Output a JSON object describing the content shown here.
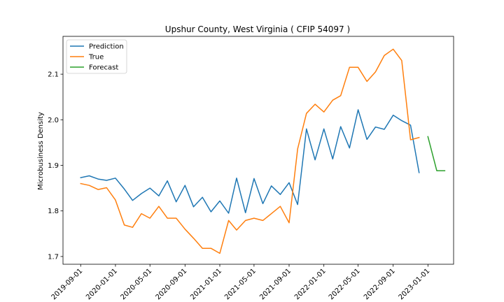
{
  "chart_data": {
    "type": "line",
    "title": "Upshur County, West Virginia ( CFIP 54097 )",
    "xlabel": "",
    "ylabel": "Microbusiness Density",
    "ylim": [
      1.683,
      2.183
    ],
    "yticks": [
      1.7,
      1.8,
      1.9,
      2.0,
      2.1
    ],
    "ytick_labels": [
      "1.7",
      "1.8",
      "1.9",
      "2.0",
      "2.1"
    ],
    "xlim": [
      "2019-07-01",
      "2023-04-01"
    ],
    "xticks": [
      "2019-09-01",
      "2020-01-01",
      "2020-05-01",
      "2020-09-01",
      "2021-01-01",
      "2021-05-01",
      "2021-09-01",
      "2022-01-01",
      "2022-05-01",
      "2022-09-01",
      "2023-01-01"
    ],
    "grid": false,
    "legend_position": "top-left",
    "series": [
      {
        "name": "Prediction",
        "color": "#1f77b4",
        "x": [
          "2019-09-01",
          "2019-10-01",
          "2019-11-01",
          "2019-12-01",
          "2020-01-01",
          "2020-02-01",
          "2020-03-01",
          "2020-04-01",
          "2020-05-01",
          "2020-06-01",
          "2020-07-01",
          "2020-08-01",
          "2020-09-01",
          "2020-10-01",
          "2020-11-01",
          "2020-12-01",
          "2021-01-01",
          "2021-02-01",
          "2021-03-01",
          "2021-04-01",
          "2021-05-01",
          "2021-06-01",
          "2021-07-01",
          "2021-08-01",
          "2021-09-01",
          "2021-10-01",
          "2021-11-01",
          "2021-12-01",
          "2022-01-01",
          "2022-02-01",
          "2022-03-01",
          "2022-04-01",
          "2022-05-01",
          "2022-06-01",
          "2022-07-01",
          "2022-08-01",
          "2022-09-01",
          "2022-10-01",
          "2022-11-01",
          "2022-12-01"
        ],
        "values": [
          1.873,
          1.877,
          1.87,
          1.867,
          1.872,
          1.848,
          1.823,
          1.838,
          1.85,
          1.833,
          1.866,
          1.82,
          1.856,
          1.809,
          1.83,
          1.798,
          1.822,
          1.795,
          1.872,
          1.796,
          1.871,
          1.816,
          1.855,
          1.836,
          1.862,
          1.814,
          1.98,
          1.912,
          1.98,
          1.914,
          1.985,
          1.938,
          2.022,
          1.957,
          1.984,
          1.979,
          2.01,
          1.998,
          1.988,
          1.884
        ]
      },
      {
        "name": "True",
        "color": "#ff7f0e",
        "x": [
          "2019-09-01",
          "2019-10-01",
          "2019-11-01",
          "2019-12-01",
          "2020-01-01",
          "2020-02-01",
          "2020-03-01",
          "2020-04-01",
          "2020-05-01",
          "2020-06-01",
          "2020-07-01",
          "2020-08-01",
          "2020-09-01",
          "2020-10-01",
          "2020-11-01",
          "2020-12-01",
          "2021-01-01",
          "2021-02-01",
          "2021-03-01",
          "2021-04-01",
          "2021-05-01",
          "2021-06-01",
          "2021-07-01",
          "2021-08-01",
          "2021-09-01",
          "2021-10-01",
          "2021-11-01",
          "2021-12-01",
          "2022-01-01",
          "2022-02-01",
          "2022-03-01",
          "2022-04-01",
          "2022-05-01",
          "2022-06-01",
          "2022-07-01",
          "2022-08-01",
          "2022-09-01",
          "2022-10-01",
          "2022-11-01",
          "2022-12-01"
        ],
        "values": [
          1.86,
          1.856,
          1.847,
          1.851,
          1.824,
          1.769,
          1.764,
          1.794,
          1.784,
          1.81,
          1.784,
          1.784,
          1.76,
          1.74,
          1.718,
          1.718,
          1.707,
          1.779,
          1.758,
          1.779,
          1.784,
          1.779,
          1.794,
          1.81,
          1.774,
          1.936,
          2.014,
          2.034,
          2.017,
          2.043,
          2.053,
          2.115,
          2.115,
          2.084,
          2.105,
          2.141,
          2.155,
          2.13,
          1.956,
          1.961
        ]
      },
      {
        "name": "Forecast",
        "color": "#2ca02c",
        "x": [
          "2023-01-01",
          "2023-02-01",
          "2023-03-01"
        ],
        "values": [
          1.963,
          1.888,
          1.888
        ]
      }
    ]
  }
}
